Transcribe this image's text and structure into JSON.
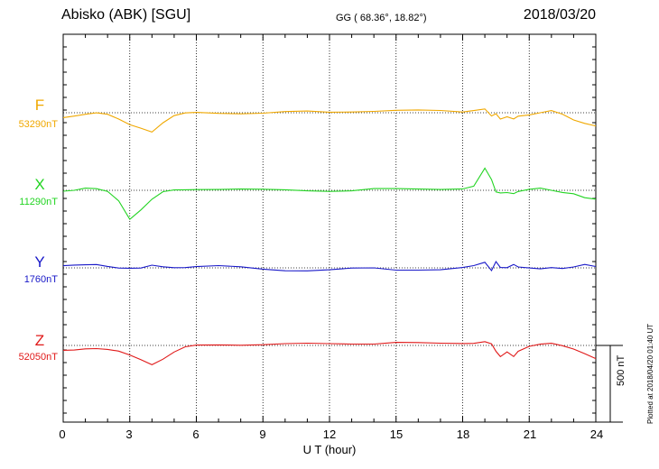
{
  "header": {
    "station": "Abisko (ABK)  [SGU]",
    "coords": "GG ( 68.36°,  18.82°)",
    "date": "2018/03/20"
  },
  "side_note": "Plotted at 2018/04/20 01:40 UT",
  "colors": {
    "F": "#f0a800",
    "X": "#22d422",
    "Y": "#1818c8",
    "Z": "#e01818"
  },
  "chart_data": {
    "type": "line",
    "title": "Abisko (ABK)  [SGU]",
    "xlabel": "U T (hour)",
    "ylabel": "",
    "xlim": [
      0,
      24
    ],
    "x_ticks": [
      "0",
      "3",
      "6",
      "9",
      "12",
      "15",
      "18",
      "21",
      "24"
    ],
    "grid": true,
    "scale_bar": "500 nT",
    "x": [
      0,
      0.5,
      1,
      1.5,
      2,
      2.5,
      3,
      3.5,
      4,
      4.5,
      5,
      5.5,
      6,
      7,
      8,
      9,
      10,
      11,
      12,
      13,
      14,
      15,
      16,
      17,
      18,
      18.5,
      19,
      19.3,
      19.5,
      19.7,
      20,
      20.3,
      20.5,
      21,
      21.5,
      22,
      22.5,
      23,
      23.5,
      24
    ],
    "series": [
      {
        "name": "F",
        "baseline_label": "53290nT",
        "values": [
          -40,
          -20,
          -5,
          0,
          -20,
          -60,
          -100,
          -120,
          -150,
          -80,
          -30,
          -10,
          0,
          0,
          0,
          0,
          5,
          5,
          0,
          10,
          20,
          25,
          20,
          10,
          0,
          20,
          40,
          -20,
          -10,
          -60,
          -40,
          -50,
          -20,
          -10,
          0,
          10,
          -20,
          -60,
          -80,
          -100
        ]
      },
      {
        "name": "X",
        "baseline_label": "11290nT",
        "values": [
          0,
          0,
          10,
          5,
          -10,
          -80,
          -230,
          -160,
          -80,
          -20,
          0,
          10,
          15,
          10,
          5,
          0,
          0,
          0,
          0,
          0,
          10,
          5,
          5,
          10,
          20,
          40,
          180,
          80,
          -20,
          -20,
          -10,
          -20,
          -10,
          0,
          10,
          0,
          -10,
          -20,
          -60,
          -80
        ]
      },
      {
        "name": "Y",
        "baseline_label": "1760nT",
        "values": [
          10,
          15,
          25,
          35,
          20,
          0,
          -10,
          -10,
          20,
          15,
          10,
          5,
          5,
          10,
          5,
          -5,
          -15,
          -20,
          -20,
          -10,
          -5,
          -15,
          -10,
          -10,
          0,
          10,
          40,
          -20,
          60,
          10,
          0,
          20,
          0,
          0,
          0,
          10,
          -5,
          0,
          20,
          10
        ]
      },
      {
        "name": "Z",
        "baseline_label": "52050nT",
        "values": [
          -40,
          -30,
          -20,
          -25,
          -40,
          -55,
          -80,
          -110,
          -150,
          -110,
          -60,
          -20,
          0,
          10,
          10,
          10,
          10,
          10,
          10,
          15,
          20,
          30,
          20,
          10,
          10,
          20,
          40,
          20,
          -50,
          -100,
          -60,
          -90,
          -40,
          0,
          10,
          10,
          -10,
          -30,
          -60,
          -100
        ]
      }
    ]
  }
}
